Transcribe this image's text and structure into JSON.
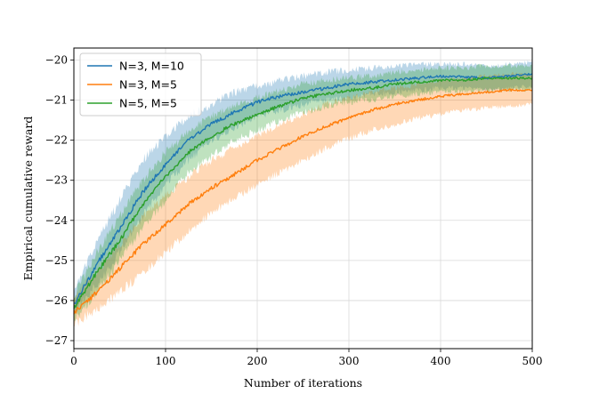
{
  "chart_data": {
    "type": "line",
    "xlabel": "Number of iterations",
    "ylabel": "Empirical cumulative reward",
    "xlim": [
      0,
      500
    ],
    "ylim": [
      -27.2,
      -19.7
    ],
    "xticks": [
      0,
      100,
      200,
      300,
      400,
      500
    ],
    "yticks": [
      -27,
      -26,
      -25,
      -24,
      -23,
      -22,
      -21,
      -20
    ],
    "grid": true,
    "legend_position": "top-left",
    "series": [
      {
        "name": "N=3, M=10",
        "color": "#1f77b4",
        "x": [
          0,
          25,
          50,
          75,
          100,
          125,
          150,
          175,
          200,
          225,
          250,
          275,
          300,
          325,
          350,
          375,
          400,
          425,
          450,
          475,
          500
        ],
        "mean": [
          -26.1,
          -25.1,
          -24.2,
          -23.3,
          -22.6,
          -22.0,
          -21.6,
          -21.3,
          -21.05,
          -20.9,
          -20.8,
          -20.7,
          -20.6,
          -20.55,
          -20.5,
          -20.45,
          -20.4,
          -20.42,
          -20.45,
          -20.4,
          -20.35
        ],
        "lower": [
          -26.3,
          -25.6,
          -24.8,
          -23.9,
          -23.1,
          -22.5,
          -22.0,
          -21.7,
          -21.4,
          -21.25,
          -21.1,
          -21.0,
          -20.95,
          -20.85,
          -20.8,
          -20.75,
          -20.7,
          -20.7,
          -20.75,
          -20.7,
          -20.65
        ],
        "upper": [
          -25.8,
          -24.5,
          -23.5,
          -22.5,
          -21.9,
          -21.4,
          -21.1,
          -20.8,
          -20.65,
          -20.5,
          -20.4,
          -20.3,
          -20.25,
          -20.2,
          -20.15,
          -20.1,
          -20.1,
          -20.1,
          -20.15,
          -20.1,
          -20.05
        ]
      },
      {
        "name": "N=3, M=5",
        "color": "#ff7f0e",
        "x": [
          0,
          25,
          50,
          75,
          100,
          125,
          150,
          175,
          200,
          225,
          250,
          275,
          300,
          325,
          350,
          375,
          400,
          425,
          450,
          475,
          500
        ],
        "mean": [
          -26.3,
          -25.8,
          -25.2,
          -24.6,
          -24.1,
          -23.6,
          -23.2,
          -22.85,
          -22.5,
          -22.2,
          -21.9,
          -21.65,
          -21.45,
          -21.25,
          -21.1,
          -21.0,
          -20.9,
          -20.85,
          -20.8,
          -20.75,
          -20.75
        ],
        "lower": [
          -26.6,
          -26.2,
          -25.8,
          -25.3,
          -24.8,
          -24.3,
          -23.8,
          -23.45,
          -23.1,
          -22.8,
          -22.5,
          -22.2,
          -21.95,
          -21.75,
          -21.6,
          -21.45,
          -21.35,
          -21.25,
          -21.2,
          -21.15,
          -21.1
        ],
        "upper": [
          -25.9,
          -25.3,
          -24.6,
          -23.9,
          -23.4,
          -22.9,
          -22.5,
          -22.2,
          -21.9,
          -21.6,
          -21.35,
          -21.1,
          -20.95,
          -20.8,
          -20.7,
          -20.6,
          -20.5,
          -20.45,
          -20.4,
          -20.35,
          -20.35
        ]
      },
      {
        "name": "N=5, M=5",
        "color": "#2ca02c",
        "x": [
          0,
          25,
          50,
          75,
          100,
          125,
          150,
          175,
          200,
          225,
          250,
          275,
          300,
          325,
          350,
          375,
          400,
          425,
          450,
          475,
          500
        ],
        "mean": [
          -26.2,
          -25.3,
          -24.5,
          -23.6,
          -22.9,
          -22.3,
          -21.9,
          -21.6,
          -21.35,
          -21.15,
          -20.95,
          -20.85,
          -20.75,
          -20.7,
          -20.6,
          -20.55,
          -20.5,
          -20.5,
          -20.45,
          -20.45,
          -20.45
        ],
        "lower": [
          -26.5,
          -25.8,
          -25.0,
          -24.2,
          -23.5,
          -22.8,
          -22.4,
          -22.0,
          -21.75,
          -21.5,
          -21.3,
          -21.15,
          -21.05,
          -21.0,
          -20.9,
          -20.85,
          -20.8,
          -20.8,
          -20.75,
          -20.75,
          -20.75
        ],
        "upper": [
          -25.9,
          -24.8,
          -23.9,
          -23.0,
          -22.3,
          -21.8,
          -21.4,
          -21.15,
          -20.95,
          -20.75,
          -20.6,
          -20.5,
          -20.45,
          -20.4,
          -20.3,
          -20.25,
          -20.2,
          -20.2,
          -20.15,
          -20.15,
          -20.15
        ]
      }
    ]
  }
}
